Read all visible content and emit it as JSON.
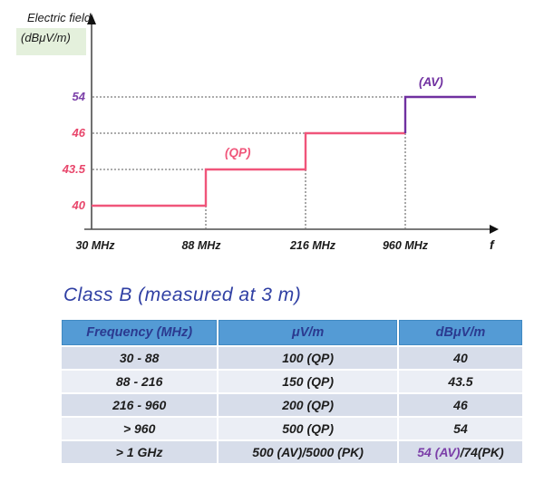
{
  "colors": {
    "qp_line_pink": "#f0557a",
    "av_line_purple": "#7030a0",
    "tick_pink": "#e8466b",
    "tick_purple": "#7b3fa8",
    "table_value_pink": "#e62e6c",
    "table_value_purple": "#7b3fa8",
    "table_header_bg": "#549bd5",
    "table_header_text": "#2b3a90",
    "row_dark": "#d7ddea",
    "row_light": "#ebeef5",
    "heading_blue": "#2f3fa3",
    "ylabel_bg": "#e4f0dc"
  },
  "chart_data": {
    "type": "line",
    "subtype": "step",
    "y_axis_label_lines": [
      "Electric field",
      "(dBμV/m)"
    ],
    "x_axis_symbol": "f",
    "x_tick_labels": [
      "30 MHz",
      "88 MHz",
      "216 MHz",
      "960 MHz"
    ],
    "y_tick_values": [
      40,
      43.5,
      46,
      54
    ],
    "grid": "dotted guides at each step level",
    "series": [
      {
        "name": "(QP)",
        "color": "#f0557a",
        "steps": [
          {
            "from_mhz": 30,
            "to_mhz": 88,
            "dbuv_m": 40
          },
          {
            "from_mhz": 88,
            "to_mhz": 216,
            "dbuv_m": 43.5
          },
          {
            "from_mhz": 216,
            "to_mhz": 960,
            "dbuv_m": 46
          }
        ]
      },
      {
        "name": "(AV)",
        "color": "#7030a0",
        "steps": [
          {
            "from_mhz": 960,
            "to_mhz": null,
            "dbuv_m": 54
          }
        ]
      }
    ]
  },
  "heading": "Class B (measured at 3 m)",
  "table": {
    "headers": [
      "Frequency (MHz)",
      "μV/m",
      "dBμV/m"
    ],
    "rows": [
      {
        "frequency": "30 - 88",
        "uv": "100 (QP)",
        "dbuv": "40"
      },
      {
        "frequency": "88 - 216",
        "uv": "150 (QP)",
        "dbuv": "43.5"
      },
      {
        "frequency": "216 - 960",
        "uv": "200 (QP)",
        "dbuv": "46"
      },
      {
        "frequency": "> 960",
        "uv": "500 (QP)",
        "dbuv": "54"
      },
      {
        "frequency": "> 1 GHz",
        "uv": "500 (AV)/5000 (PK)",
        "dbuv_av": "54 (AV)",
        "dbuv_pk": "/74(PK)"
      }
    ]
  }
}
